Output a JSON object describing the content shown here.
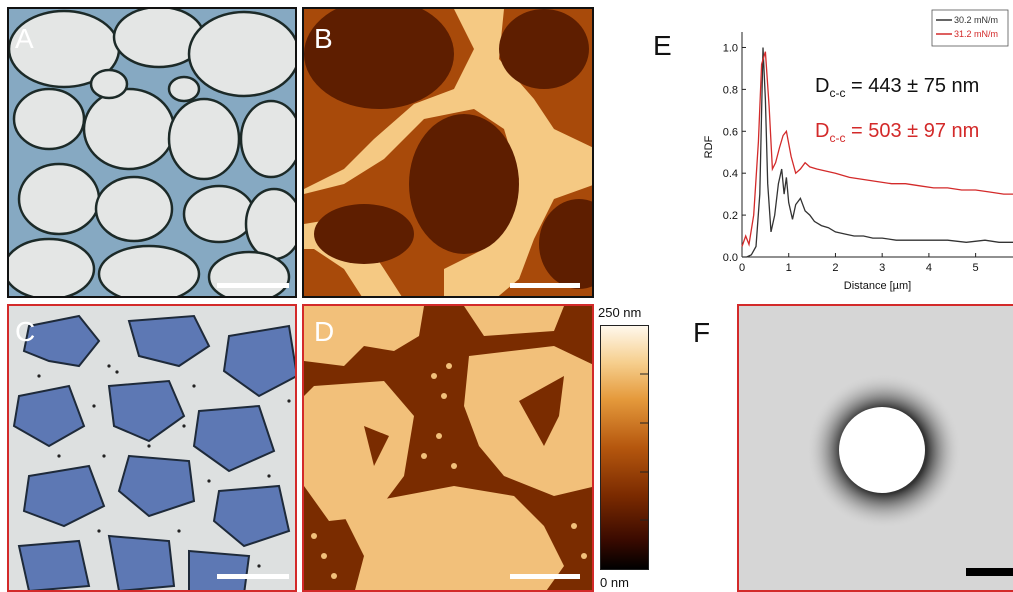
{
  "panels": {
    "a": {
      "letter": "A"
    },
    "b": {
      "letter": "B"
    },
    "c": {
      "letter": "C"
    },
    "d": {
      "letter": "D"
    },
    "e": {
      "letter": "E"
    },
    "f": {
      "letter": "F"
    }
  },
  "colorbar": {
    "top_label": "250 nm",
    "bottom_label": "0 nm"
  },
  "colors": {
    "frame_black": "#111111",
    "frame_red": "#d32a2a",
    "series_black": "#333333",
    "series_red": "#d32a2a",
    "afm_dark": "#6b2300",
    "afm_light": "#f5c983"
  },
  "chart_data": {
    "type": "line",
    "title": "",
    "xlabel": "Distance [µm]",
    "ylabel": "RDF",
    "xlim": [
      0,
      5.8
    ],
    "ylim": [
      0,
      1.05
    ],
    "xticks": [
      0,
      1,
      2,
      3,
      4,
      5
    ],
    "yticks": [
      0.0,
      0.2,
      0.4,
      0.6,
      0.8,
      1.0
    ],
    "ytick_labels": [
      "0.0",
      "0.2",
      "0.4",
      "0.6",
      "0.8",
      "1.0"
    ],
    "legend_position": "top-right",
    "grid": false,
    "annotations": [
      {
        "prefix": "D",
        "sub": "c-c",
        "rest": " = 443 ± 75 nm",
        "color": "#111111"
      },
      {
        "prefix": "D",
        "sub": "c-c",
        "rest": " = 503 ± 97 nm",
        "color": "#d32a2a"
      }
    ],
    "series": [
      {
        "name": "30.2 mN/m",
        "color": "#333333",
        "x": [
          0,
          0.1,
          0.2,
          0.3,
          0.38,
          0.45,
          0.5,
          0.55,
          0.62,
          0.7,
          0.78,
          0.85,
          0.9,
          0.95,
          1.0,
          1.08,
          1.15,
          1.25,
          1.35,
          1.45,
          1.55,
          1.7,
          1.85,
          2.0,
          2.2,
          2.4,
          2.6,
          2.8,
          3.0,
          3.3,
          3.6,
          4.0,
          4.4,
          4.8,
          5.2,
          5.5,
          5.8
        ],
        "y": [
          0.0,
          0.0,
          0.01,
          0.05,
          0.3,
          1.0,
          0.75,
          0.35,
          0.12,
          0.2,
          0.35,
          0.42,
          0.3,
          0.38,
          0.26,
          0.18,
          0.25,
          0.28,
          0.22,
          0.2,
          0.17,
          0.15,
          0.14,
          0.12,
          0.11,
          0.1,
          0.1,
          0.09,
          0.09,
          0.08,
          0.08,
          0.08,
          0.08,
          0.07,
          0.08,
          0.07,
          0.07
        ]
      },
      {
        "name": "31.2 mN/m",
        "color": "#d32a2a",
        "x": [
          0,
          0.08,
          0.15,
          0.25,
          0.35,
          0.42,
          0.5,
          0.58,
          0.65,
          0.72,
          0.8,
          0.88,
          0.95,
          1.05,
          1.15,
          1.25,
          1.35,
          1.45,
          1.6,
          1.8,
          2.0,
          2.3,
          2.6,
          2.9,
          3.2,
          3.5,
          3.8,
          4.1,
          4.4,
          4.7,
          5.0,
          5.3,
          5.6,
          5.8
        ],
        "y": [
          0.05,
          0.1,
          0.06,
          0.2,
          0.55,
          0.92,
          0.98,
          0.72,
          0.42,
          0.45,
          0.52,
          0.58,
          0.6,
          0.48,
          0.4,
          0.42,
          0.45,
          0.43,
          0.42,
          0.41,
          0.4,
          0.38,
          0.37,
          0.36,
          0.35,
          0.35,
          0.34,
          0.33,
          0.33,
          0.32,
          0.32,
          0.31,
          0.3,
          0.3
        ]
      }
    ]
  }
}
